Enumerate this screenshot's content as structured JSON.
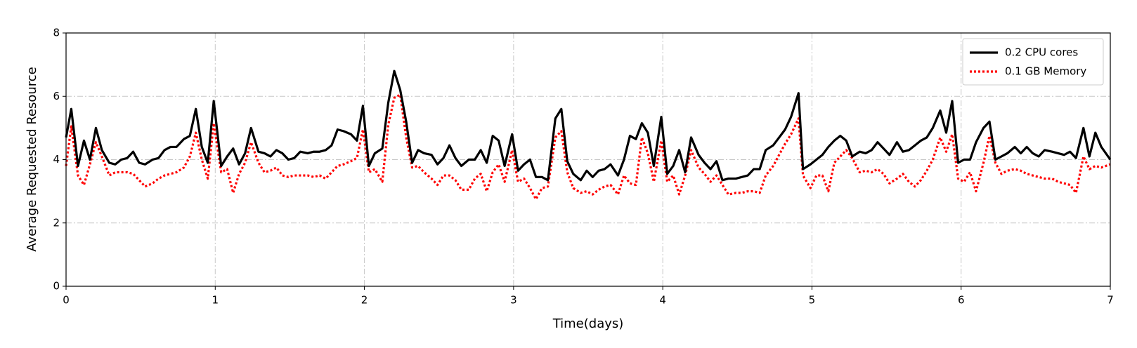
{
  "chart_data": {
    "type": "line",
    "xlabel": "Time(days)",
    "ylabel": "Average Requested Resource",
    "x": [
      0,
      0.035,
      0.08,
      0.12,
      0.16,
      0.2,
      0.24,
      0.29,
      0.33,
      0.37,
      0.41,
      0.45,
      0.49,
      0.53,
      0.58,
      0.62,
      0.66,
      0.7,
      0.74,
      0.79,
      0.83,
      0.87,
      0.91,
      0.95,
      0.99,
      1.04,
      1.08,
      1.12,
      1.16,
      1.2,
      1.24,
      1.29,
      1.33,
      1.37,
      1.41,
      1.45,
      1.49,
      1.53,
      1.57,
      1.62,
      1.66,
      1.7,
      1.74,
      1.78,
      1.82,
      1.86,
      1.91,
      1.95,
      1.99,
      2.03,
      2.07,
      2.12,
      2.16,
      2.2,
      2.24,
      2.28,
      2.32,
      2.36,
      2.4,
      2.45,
      2.49,
      2.53,
      2.57,
      2.61,
      2.65,
      2.7,
      2.74,
      2.78,
      2.82,
      2.86,
      2.9,
      2.94,
      2.99,
      3.03,
      3.07,
      3.11,
      3.15,
      3.19,
      3.23,
      3.28,
      3.32,
      3.36,
      3.4,
      3.45,
      3.49,
      3.53,
      3.57,
      3.61,
      3.65,
      3.7,
      3.74,
      3.78,
      3.82,
      3.86,
      3.9,
      3.94,
      3.99,
      4.03,
      4.07,
      4.11,
      4.15,
      4.19,
      4.24,
      4.28,
      4.32,
      4.36,
      4.4,
      4.44,
      4.49,
      4.53,
      4.57,
      4.61,
      4.65,
      4.69,
      4.74,
      4.78,
      4.82,
      4.86,
      4.91,
      4.94,
      4.99,
      5.03,
      5.07,
      5.11,
      5.15,
      5.19,
      5.23,
      5.27,
      5.32,
      5.36,
      5.4,
      5.44,
      5.48,
      5.52,
      5.57,
      5.61,
      5.65,
      5.69,
      5.73,
      5.77,
      5.81,
      5.86,
      5.9,
      5.94,
      5.98,
      6.02,
      6.06,
      6.1,
      6.15,
      6.19,
      6.23,
      6.27,
      6.31,
      6.36,
      6.4,
      6.44,
      6.48,
      6.52,
      6.56,
      6.61,
      6.65,
      6.69,
      6.73,
      6.77,
      6.82,
      6.86,
      6.9,
      6.94,
      7.0
    ],
    "series": [
      {
        "name": "0.2 CPU cores",
        "color": "#000000",
        "linestyle": "solid",
        "values": [
          4.7,
          5.6,
          3.8,
          4.6,
          4.0,
          5.0,
          4.3,
          3.9,
          3.85,
          4.0,
          4.05,
          4.25,
          3.9,
          3.85,
          4.0,
          4.05,
          4.3,
          4.4,
          4.4,
          4.65,
          4.75,
          5.6,
          4.4,
          3.9,
          5.85,
          3.8,
          4.1,
          4.35,
          3.85,
          4.2,
          5.0,
          4.25,
          4.2,
          4.1,
          4.3,
          4.2,
          4.0,
          4.05,
          4.25,
          4.2,
          4.25,
          4.25,
          4.3,
          4.45,
          4.95,
          4.9,
          4.8,
          4.6,
          5.7,
          3.8,
          4.2,
          4.35,
          5.8,
          6.8,
          6.2,
          5.2,
          3.9,
          4.3,
          4.2,
          4.15,
          3.85,
          4.05,
          4.45,
          4.05,
          3.8,
          4.0,
          4.0,
          4.3,
          3.9,
          4.75,
          4.6,
          3.8,
          4.8,
          3.65,
          3.85,
          4.0,
          3.45,
          3.45,
          3.35,
          5.3,
          5.6,
          3.95,
          3.55,
          3.35,
          3.65,
          3.45,
          3.65,
          3.7,
          3.85,
          3.5,
          4.0,
          4.75,
          4.65,
          5.15,
          4.85,
          3.8,
          5.35,
          3.55,
          3.8,
          4.3,
          3.6,
          4.7,
          4.15,
          3.9,
          3.7,
          3.95,
          3.35,
          3.4,
          3.4,
          3.45,
          3.5,
          3.7,
          3.7,
          4.3,
          4.45,
          4.7,
          4.95,
          5.35,
          6.1,
          3.7,
          3.85,
          4.0,
          4.15,
          4.4,
          4.6,
          4.75,
          4.6,
          4.1,
          4.25,
          4.2,
          4.3,
          4.55,
          4.35,
          4.15,
          4.55,
          4.25,
          4.3,
          4.45,
          4.6,
          4.7,
          5.0,
          5.55,
          4.85,
          5.85,
          3.9,
          4.0,
          4.0,
          4.55,
          5.0,
          5.2,
          4.0,
          4.1,
          4.2,
          4.4,
          4.2,
          4.4,
          4.2,
          4.1,
          4.3,
          4.25,
          4.2,
          4.15,
          4.25,
          4.05,
          5.0,
          4.1,
          4.85,
          4.4,
          4.0
        ]
      },
      {
        "name": "0.1 GB Memory",
        "color": "#ff0000",
        "linestyle": "dotted",
        "values": [
          3.8,
          5.05,
          3.5,
          3.2,
          3.85,
          4.55,
          4.1,
          3.5,
          3.6,
          3.6,
          3.6,
          3.55,
          3.35,
          3.15,
          3.25,
          3.4,
          3.5,
          3.55,
          3.6,
          3.75,
          4.1,
          4.85,
          4.0,
          3.4,
          5.15,
          3.6,
          3.7,
          2.95,
          3.55,
          3.9,
          4.55,
          3.9,
          3.6,
          3.65,
          3.75,
          3.5,
          3.45,
          3.5,
          3.5,
          3.5,
          3.45,
          3.5,
          3.4,
          3.6,
          3.8,
          3.85,
          3.95,
          4.05,
          4.95,
          3.6,
          3.7,
          3.3,
          5.1,
          5.95,
          6.05,
          4.7,
          3.75,
          3.8,
          3.6,
          3.4,
          3.2,
          3.5,
          3.5,
          3.35,
          3.05,
          3.05,
          3.4,
          3.55,
          3.0,
          3.6,
          3.85,
          3.3,
          4.3,
          3.3,
          3.4,
          3.1,
          2.75,
          3.1,
          3.15,
          4.7,
          4.9,
          3.6,
          3.1,
          2.95,
          3.0,
          2.9,
          3.05,
          3.15,
          3.2,
          2.9,
          3.5,
          3.25,
          3.2,
          4.7,
          4.2,
          3.3,
          4.6,
          3.3,
          3.5,
          2.9,
          3.5,
          4.3,
          3.75,
          3.55,
          3.3,
          3.5,
          3.2,
          2.9,
          2.95,
          2.95,
          3.0,
          3.0,
          2.95,
          3.5,
          3.8,
          4.15,
          4.5,
          4.8,
          5.3,
          3.5,
          3.1,
          3.5,
          3.5,
          3.0,
          3.9,
          4.1,
          4.3,
          4.05,
          3.6,
          3.65,
          3.6,
          3.7,
          3.55,
          3.25,
          3.4,
          3.55,
          3.3,
          3.15,
          3.35,
          3.65,
          4.0,
          4.7,
          4.25,
          4.8,
          3.4,
          3.3,
          3.6,
          3.0,
          3.9,
          4.75,
          3.9,
          3.55,
          3.65,
          3.7,
          3.65,
          3.55,
          3.5,
          3.45,
          3.4,
          3.4,
          3.3,
          3.25,
          3.2,
          2.95,
          4.1,
          3.7,
          3.8,
          3.75,
          3.85
        ]
      }
    ],
    "xlim": [
      0,
      7
    ],
    "ylim": [
      0,
      8
    ],
    "xticks": [
      0,
      1,
      2,
      3,
      4,
      5,
      6,
      7
    ],
    "yticks": [
      0,
      2,
      4,
      6,
      8
    ],
    "grid": true,
    "legend": "upper right"
  }
}
